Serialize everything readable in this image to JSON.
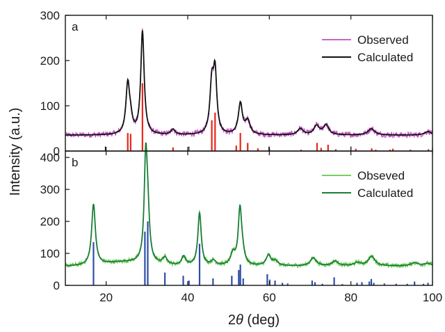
{
  "chart_data": {
    "type": "line",
    "xlabel": "2θ (deg)",
    "xlabel_main": "2",
    "xlabel_theta": "θ",
    "xlabel_unit": " (deg)",
    "ylabel": "Intensity (a.u.)",
    "xlim": [
      10,
      100
    ],
    "xticks": [
      20,
      40,
      60,
      80,
      100
    ],
    "xtick_labels": [
      "20",
      "40",
      "60",
      "80",
      "100"
    ],
    "grid": false,
    "panels": [
      {
        "tag": "a",
        "ylim": [
          0,
          300
        ],
        "yticks": [
          0,
          100,
          200,
          300
        ],
        "ytick_labels": [
          "0",
          "100",
          "200",
          "300"
        ],
        "legend_position": "top-right",
        "colors": {
          "observed": "#c04fc0",
          "calculated": "#111111",
          "bragg": "#e8251b",
          "minor": "#111111"
        },
        "series": [
          {
            "name": "Observed",
            "role": "observed"
          },
          {
            "name": "Calculated",
            "role": "calculated"
          }
        ],
        "background": 35,
        "peaks": [
          {
            "x": 25.3,
            "h": 110,
            "w": 0.55
          },
          {
            "x": 26.0,
            "h": 25,
            "w": 0.5
          },
          {
            "x": 28.9,
            "h": 228,
            "w": 0.5
          },
          {
            "x": 36.4,
            "h": 12,
            "w": 0.6
          },
          {
            "x": 45.9,
            "h": 108,
            "w": 0.55
          },
          {
            "x": 46.7,
            "h": 128,
            "w": 0.5
          },
          {
            "x": 52.9,
            "h": 68,
            "w": 0.6
          },
          {
            "x": 54.7,
            "h": 30,
            "w": 0.7
          },
          {
            "x": 67.6,
            "h": 14,
            "w": 0.8
          },
          {
            "x": 71.6,
            "h": 20,
            "w": 0.8
          },
          {
            "x": 73.9,
            "h": 22,
            "w": 0.8
          },
          {
            "x": 85.0,
            "h": 14,
            "w": 1.0
          },
          {
            "x": 98.9,
            "h": 8,
            "w": 1.0
          }
        ],
        "bragg_ticks": [
          {
            "x": 25.3,
            "h": 40
          },
          {
            "x": 26.0,
            "h": 38
          },
          {
            "x": 28.9,
            "h": 150
          },
          {
            "x": 36.4,
            "h": 8
          },
          {
            "x": 45.9,
            "h": 68
          },
          {
            "x": 46.7,
            "h": 85
          },
          {
            "x": 51.9,
            "h": 12
          },
          {
            "x": 52.9,
            "h": 40
          },
          {
            "x": 54.7,
            "h": 18
          },
          {
            "x": 57.2,
            "h": 6
          },
          {
            "x": 60.0,
            "h": 5
          },
          {
            "x": 67.8,
            "h": 3
          },
          {
            "x": 71.7,
            "h": 18
          },
          {
            "x": 72.7,
            "h": 7
          },
          {
            "x": 74.4,
            "h": 14
          },
          {
            "x": 76.3,
            "h": 4
          },
          {
            "x": 81.2,
            "h": 5
          },
          {
            "x": 85.1,
            "h": 6
          },
          {
            "x": 86.1,
            "h": 3
          },
          {
            "x": 89.6,
            "h": 3
          },
          {
            "x": 90.3,
            "h": 5
          },
          {
            "x": 94.6,
            "h": 3
          },
          {
            "x": 99.0,
            "h": 4
          }
        ],
        "minor_ticks": [
          {
            "x": 19.8,
            "h": 10
          },
          {
            "x": 40.3,
            "h": 10
          },
          {
            "x": 59.9,
            "h": 10
          },
          {
            "x": 80.0,
            "h": 10
          }
        ]
      },
      {
        "tag": "b",
        "ylim": [
          0,
          420
        ],
        "yticks": [
          0,
          100,
          200,
          300,
          400
        ],
        "ytick_labels": [
          "0",
          "100",
          "200",
          "300",
          "400"
        ],
        "legend_position": "top-right",
        "colors": {
          "observed": "#62c84a",
          "calculated": "#1a7d37",
          "bragg": "#2e4fa8"
        },
        "series": [
          {
            "name": "Obseved",
            "role": "observed"
          },
          {
            "name": "Calculated",
            "role": "calculated"
          }
        ],
        "background": 60,
        "peaks": [
          {
            "x": 16.9,
            "h": 190,
            "w": 0.55
          },
          {
            "x": 29.7,
            "h": 310,
            "w": 0.45
          },
          {
            "x": 30.2,
            "h": 130,
            "w": 0.5
          },
          {
            "x": 34.4,
            "h": 22,
            "w": 0.7
          },
          {
            "x": 39.0,
            "h": 28,
            "w": 0.6
          },
          {
            "x": 42.9,
            "h": 165,
            "w": 0.5
          },
          {
            "x": 46.3,
            "h": 15,
            "w": 0.7
          },
          {
            "x": 51.1,
            "h": 35,
            "w": 0.7
          },
          {
            "x": 52.8,
            "h": 170,
            "w": 0.5
          },
          {
            "x": 53.4,
            "h": 30,
            "w": 0.6
          },
          {
            "x": 59.8,
            "h": 32,
            "w": 0.7
          },
          {
            "x": 61.5,
            "h": 14,
            "w": 0.8
          },
          {
            "x": 70.8,
            "h": 25,
            "w": 0.9
          },
          {
            "x": 76.1,
            "h": 15,
            "w": 0.9
          },
          {
            "x": 81.6,
            "h": 10,
            "w": 1.0
          },
          {
            "x": 85.1,
            "h": 30,
            "w": 1.0
          },
          {
            "x": 95.6,
            "h": 10,
            "w": 1.1
          },
          {
            "x": 98.8,
            "h": 8,
            "w": 1.1
          }
        ],
        "bragg_ticks": [
          {
            "x": 16.9,
            "h": 135
          },
          {
            "x": 29.5,
            "h": 168
          },
          {
            "x": 30.2,
            "h": 200
          },
          {
            "x": 34.4,
            "h": 40
          },
          {
            "x": 38.9,
            "h": 30
          },
          {
            "x": 40.3,
            "h": 15
          },
          {
            "x": 42.9,
            "h": 130
          },
          {
            "x": 46.2,
            "h": 22
          },
          {
            "x": 50.8,
            "h": 30
          },
          {
            "x": 52.5,
            "h": 48
          },
          {
            "x": 52.9,
            "h": 65
          },
          {
            "x": 53.6,
            "h": 22
          },
          {
            "x": 59.5,
            "h": 35
          },
          {
            "x": 60.1,
            "h": 18
          },
          {
            "x": 61.4,
            "h": 15
          },
          {
            "x": 63.2,
            "h": 8
          },
          {
            "x": 64.5,
            "h": 6
          },
          {
            "x": 70.5,
            "h": 15
          },
          {
            "x": 71.2,
            "h": 10
          },
          {
            "x": 73.0,
            "h": 5
          },
          {
            "x": 75.9,
            "h": 25
          },
          {
            "x": 77.9,
            "h": 4
          },
          {
            "x": 81.5,
            "h": 8
          },
          {
            "x": 82.7,
            "h": 10
          },
          {
            "x": 84.5,
            "h": 12
          },
          {
            "x": 85.0,
            "h": 20
          },
          {
            "x": 85.6,
            "h": 8
          },
          {
            "x": 88.2,
            "h": 6
          },
          {
            "x": 91.1,
            "h": 5
          },
          {
            "x": 93.8,
            "h": 5
          },
          {
            "x": 95.6,
            "h": 12
          },
          {
            "x": 97.8,
            "h": 5
          },
          {
            "x": 98.9,
            "h": 8
          }
        ]
      }
    ]
  }
}
